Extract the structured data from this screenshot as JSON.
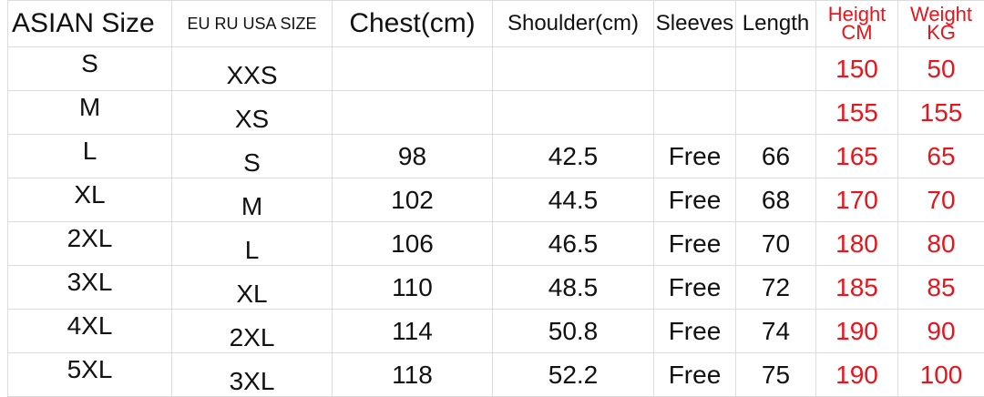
{
  "headers": {
    "asian": "ASIAN Size",
    "eu": "EU RU USA SIZE",
    "chest": "Chest(cm)",
    "shoulder": "Shoulder(cm)",
    "sleeves": "Sleeves",
    "length": "Length",
    "height_line1": "Height",
    "height_line2": "CM",
    "weight_line1": "Weight",
    "weight_line2": "KG"
  },
  "rows": [
    {
      "asian": "S",
      "eu": "XXS",
      "chest": "",
      "shoulder": "",
      "sleeves": "",
      "length": "",
      "height": "150",
      "weight": "50"
    },
    {
      "asian": "M",
      "eu": "XS",
      "chest": "",
      "shoulder": "",
      "sleeves": "",
      "length": "",
      "height": "155",
      "weight": "155"
    },
    {
      "asian": "L",
      "eu": "S",
      "chest": "98",
      "shoulder": "42.5",
      "sleeves": "Free",
      "length": "66",
      "height": "165",
      "weight": "65"
    },
    {
      "asian": "XL",
      "eu": "M",
      "chest": "102",
      "shoulder": "44.5",
      "sleeves": "Free",
      "length": "68",
      "height": "170",
      "weight": "70"
    },
    {
      "asian": "2XL",
      "eu": "L",
      "chest": "106",
      "shoulder": "46.5",
      "sleeves": "Free",
      "length": "70",
      "height": "180",
      "weight": "80"
    },
    {
      "asian": "3XL",
      "eu": "XL",
      "chest": "110",
      "shoulder": "48.5",
      "sleeves": "Free",
      "length": "72",
      "height": "185",
      "weight": "85"
    },
    {
      "asian": "4XL",
      "eu": "2XL",
      "chest": "114",
      "shoulder": "50.8",
      "sleeves": "Free",
      "length": "74",
      "height": "190",
      "weight": "90"
    },
    {
      "asian": "5XL",
      "eu": "3XL",
      "chest": "118",
      "shoulder": "52.2",
      "sleeves": "Free",
      "length": "75",
      "height": "190",
      "weight": "100"
    }
  ],
  "colors": {
    "text": "#111111",
    "accent_red": "#e8141c",
    "grid": "#dcdcdc"
  }
}
